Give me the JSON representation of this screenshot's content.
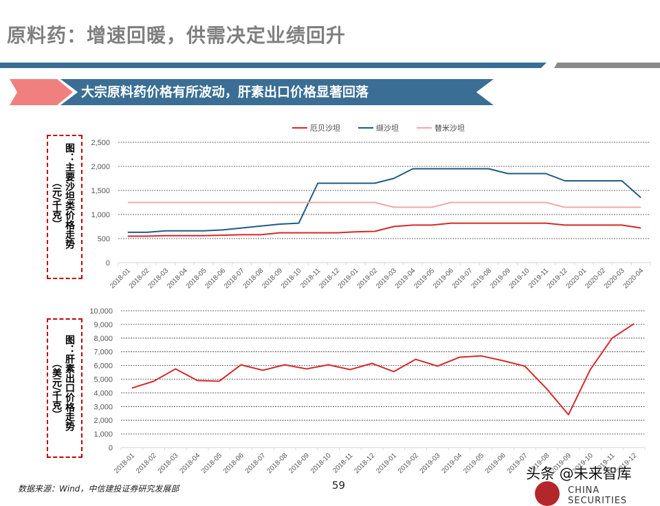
{
  "page": {
    "title": "原料药：增速回暖，供需决定业绩回升",
    "banner": "大宗原料药价格有所波动，肝素出口价格显著回落",
    "source": "数据来源：Wind，中信建投证券研究发展部",
    "page_number": "59",
    "watermark": "头条 @未来智库",
    "logo_text": "CHINA SECURITIES",
    "colors": {
      "title_gray": "#7f7f7f",
      "brand_blue": "#3a6e94",
      "accent_red": "#f08080",
      "box_red": "#c00000"
    }
  },
  "figure1": {
    "caption": "图：主要沙坦类价格走势",
    "unit": "（元/千克）"
  },
  "figure2": {
    "caption": "图：肝素出口价格走势",
    "unit": "（美元/千克）"
  },
  "chart_data": [
    {
      "type": "line",
      "title": "主要沙坦类价格走势",
      "ylabel": "元/千克",
      "xlabel": "",
      "ylim": [
        0,
        2500
      ],
      "yticks": [
        "0",
        "500",
        "1,000",
        "1,500",
        "2,000",
        "2,500"
      ],
      "grid": true,
      "legend_position": "top",
      "categories": [
        "2018-01",
        "2018-02",
        "2018-03",
        "2018-04",
        "2018-05",
        "2018-06",
        "2018-07",
        "2018-08",
        "2018-09",
        "2018-10",
        "2018-11",
        "2018-12",
        "2019-01",
        "2019-02",
        "2019-03",
        "2019-04",
        "2019-05",
        "2019-06",
        "2019-07",
        "2019-08",
        "2019-09",
        "2019-10",
        "2019-11",
        "2019-12",
        "2020-01",
        "2020-02",
        "2020-03",
        "2020-04"
      ],
      "series": [
        {
          "name": "厄贝沙坦",
          "color": "#d62728",
          "values": [
            550,
            550,
            560,
            560,
            560,
            570,
            580,
            580,
            620,
            620,
            620,
            620,
            640,
            650,
            750,
            780,
            780,
            820,
            820,
            820,
            820,
            820,
            820,
            780,
            780,
            780,
            780,
            720
          ]
        },
        {
          "name": "缬沙坦",
          "color": "#1f5a82",
          "values": [
            630,
            630,
            660,
            660,
            660,
            680,
            720,
            760,
            800,
            820,
            1650,
            1650,
            1650,
            1650,
            1750,
            1950,
            1950,
            1950,
            1950,
            1950,
            1850,
            1850,
            1850,
            1700,
            1700,
            1700,
            1700,
            1350
          ]
        },
        {
          "name": "替米沙坦",
          "color": "#f4a6a6",
          "values": [
            1250,
            1250,
            1250,
            1250,
            1250,
            1250,
            1250,
            1250,
            1250,
            1250,
            1250,
            1250,
            1250,
            1250,
            1150,
            1150,
            1150,
            1250,
            1250,
            1250,
            1250,
            1250,
            1250,
            1150,
            1150,
            1150,
            1150,
            1150
          ]
        }
      ]
    },
    {
      "type": "line",
      "title": "肝素出口价格走势",
      "ylabel": "美元/千克",
      "xlabel": "",
      "ylim": [
        0,
        10000
      ],
      "yticks": [
        "0",
        "1,000",
        "2,000",
        "3,000",
        "4,000",
        "5,000",
        "6,000",
        "7,000",
        "8,000",
        "9,000",
        "10,000"
      ],
      "grid": true,
      "categories": [
        "2018-01",
        "2018-02",
        "2018-03",
        "2018-04",
        "2018-05",
        "2018-06",
        "2018-07",
        "2018-08",
        "2018-09",
        "2018-10",
        "2018-11",
        "2018-12",
        "2019-01",
        "2019-02",
        "2019-03",
        "2019-04",
        "2019-05",
        "2019-06",
        "2019-07",
        "2019-08",
        "2019-09",
        "2019-10",
        "2019-11",
        "2019-12"
      ],
      "series": [
        {
          "name": "肝素出口价格",
          "color": "#d62728",
          "values": [
            4350,
            4850,
            5750,
            4900,
            4850,
            6050,
            5650,
            6050,
            5750,
            6050,
            5700,
            6150,
            5550,
            6450,
            5950,
            6600,
            6700,
            6350,
            5950,
            4300,
            2400,
            5700,
            8000,
            9050
          ]
        }
      ]
    }
  ]
}
